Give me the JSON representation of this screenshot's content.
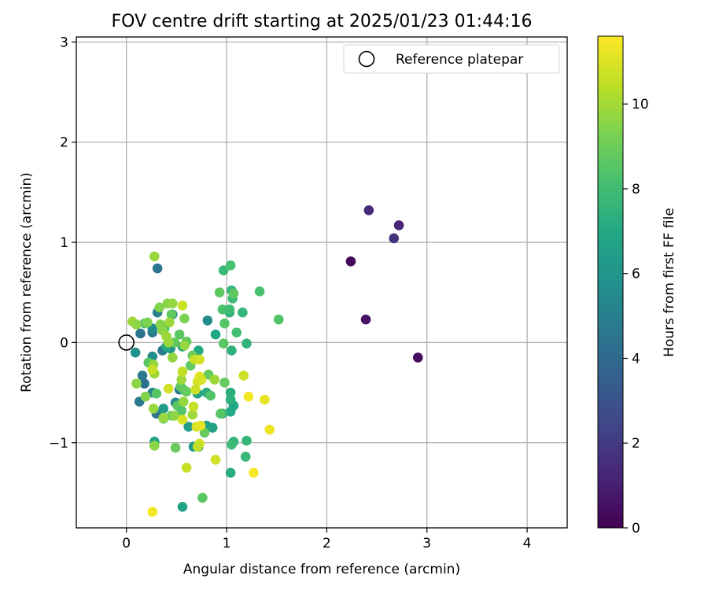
{
  "chart_data": {
    "type": "scatter",
    "title": "FOV centre drift starting at 2025/01/23 01:44:16",
    "xlabel": "Angular distance from reference (arcmin)",
    "ylabel": "Rotation from reference (arcmin)",
    "xlim": [
      -0.5,
      4.4
    ],
    "ylim": [
      -1.85,
      3.05
    ],
    "xticks": [
      0,
      1,
      2,
      3,
      4
    ],
    "xtick_labels": [
      "0",
      "1",
      "2",
      "3",
      "4"
    ],
    "yticks": [
      -1,
      0,
      1,
      2,
      3
    ],
    "ytick_labels": [
      "−1",
      "0",
      "1",
      "2",
      "3"
    ],
    "grid": true,
    "legend": {
      "placement": "top-right",
      "label": "Reference platepar"
    },
    "reference_point": {
      "x": 0,
      "y": 0
    },
    "colorbar": {
      "label": "Hours from first FF file",
      "colormap": "viridis",
      "range": [
        0,
        11.6
      ],
      "ticks": [
        0,
        2,
        4,
        6,
        8,
        10
      ],
      "tick_labels": [
        "0",
        "2",
        "4",
        "6",
        "8",
        "10"
      ]
    },
    "points": [
      {
        "x": 2.24,
        "y": 0.81,
        "c": 0.2
      },
      {
        "x": 2.42,
        "y": 1.32,
        "c": 1.4
      },
      {
        "x": 2.39,
        "y": 0.23,
        "c": 0.6
      },
      {
        "x": 2.67,
        "y": 1.04,
        "c": 1.6
      },
      {
        "x": 2.72,
        "y": 1.17,
        "c": 1.2
      },
      {
        "x": 2.91,
        "y": -0.15,
        "c": 0.4
      },
      {
        "x": 0.31,
        "y": 0.74,
        "c": 4.5
      },
      {
        "x": 0.31,
        "y": 0.3,
        "c": 5.0
      },
      {
        "x": 0.26,
        "y": 0.1,
        "c": 4.6
      },
      {
        "x": 0.26,
        "y": 0.14,
        "c": 5.5
      },
      {
        "x": 0.14,
        "y": 0.09,
        "c": 4.4
      },
      {
        "x": 0.09,
        "y": -0.1,
        "c": 5.8
      },
      {
        "x": 0.46,
        "y": 0.28,
        "c": 5.2
      },
      {
        "x": 0.36,
        "y": -0.08,
        "c": 4.8
      },
      {
        "x": 0.16,
        "y": -0.33,
        "c": 4.7
      },
      {
        "x": 0.18,
        "y": -0.41,
        "c": 4.3
      },
      {
        "x": 0.13,
        "y": -0.59,
        "c": 4.6
      },
      {
        "x": 0.26,
        "y": -0.5,
        "c": 5.2
      },
      {
        "x": 0.3,
        "y": -0.71,
        "c": 4.4
      },
      {
        "x": 0.49,
        "y": -0.6,
        "c": 5.4
      },
      {
        "x": 0.81,
        "y": 0.22,
        "c": 5.6
      },
      {
        "x": 0.53,
        "y": -0.47,
        "c": 4.5
      },
      {
        "x": 0.26,
        "y": -0.14,
        "c": 5.6
      },
      {
        "x": 0.44,
        "y": -0.06,
        "c": 6.0
      },
      {
        "x": 0.28,
        "y": -0.99,
        "c": 6.6
      },
      {
        "x": 0.37,
        "y": -0.66,
        "c": 6.3
      },
      {
        "x": 0.56,
        "y": -1.64,
        "c": 6.8
      },
      {
        "x": 0.62,
        "y": -0.84,
        "c": 6.4
      },
      {
        "x": 0.67,
        "y": -1.04,
        "c": 6.2
      },
      {
        "x": 0.72,
        "y": -1.04,
        "c": 6.8
      },
      {
        "x": 0.8,
        "y": -0.83,
        "c": 6.5
      },
      {
        "x": 0.86,
        "y": -0.85,
        "c": 6.6
      },
      {
        "x": 0.89,
        "y": 0.08,
        "c": 6.9
      },
      {
        "x": 0.71,
        "y": -0.51,
        "c": 6.6
      },
      {
        "x": 0.56,
        "y": -0.04,
        "c": 6.9
      },
      {
        "x": 0.4,
        "y": -0.04,
        "c": 7.0
      },
      {
        "x": 0.72,
        "y": -0.08,
        "c": 7.0
      },
      {
        "x": 0.8,
        "y": -0.5,
        "c": 7.2
      },
      {
        "x": 1.04,
        "y": -0.69,
        "c": 7.0
      },
      {
        "x": 1.07,
        "y": -0.63,
        "c": 6.9
      },
      {
        "x": 1.04,
        "y": -0.57,
        "c": 7.4
      },
      {
        "x": 1.04,
        "y": -0.5,
        "c": 7.3
      },
      {
        "x": 0.96,
        "y": -0.71,
        "c": 7.5
      },
      {
        "x": 1.05,
        "y": -0.08,
        "c": 7.4
      },
      {
        "x": 1.16,
        "y": 0.3,
        "c": 7.6
      },
      {
        "x": 1.2,
        "y": -0.01,
        "c": 7.5
      },
      {
        "x": 1.04,
        "y": -1.3,
        "c": 7.2
      },
      {
        "x": 1.07,
        "y": -0.99,
        "c": 7.5
      },
      {
        "x": 1.19,
        "y": -1.14,
        "c": 7.7
      },
      {
        "x": 1.2,
        "y": -0.98,
        "c": 7.6
      },
      {
        "x": 0.97,
        "y": 0.72,
        "c": 7.8
      },
      {
        "x": 1.03,
        "y": 0.3,
        "c": 7.4
      },
      {
        "x": 1.06,
        "y": 0.44,
        "c": 7.8
      },
      {
        "x": 1.05,
        "y": 0.52,
        "c": 7.6
      },
      {
        "x": 1.05,
        "y": -1.02,
        "c": 7.9
      },
      {
        "x": 0.57,
        "y": -0.47,
        "c": 7.7
      },
      {
        "x": 1.04,
        "y": 0.77,
        "c": 8.2
      },
      {
        "x": 1.33,
        "y": 0.51,
        "c": 8.2
      },
      {
        "x": 1.52,
        "y": 0.23,
        "c": 8.4
      },
      {
        "x": 1.1,
        "y": 0.1,
        "c": 8.1
      },
      {
        "x": 0.96,
        "y": 0.33,
        "c": 8.3
      },
      {
        "x": 0.98,
        "y": 0.19,
        "c": 8.5
      },
      {
        "x": 1.03,
        "y": 0.33,
        "c": 8.0
      },
      {
        "x": 1.07,
        "y": 0.49,
        "c": 8.7
      },
      {
        "x": 0.93,
        "y": 0.5,
        "c": 8.7
      },
      {
        "x": 0.97,
        "y": -0.01,
        "c": 8.6
      },
      {
        "x": 0.84,
        "y": -0.53,
        "c": 8.4
      },
      {
        "x": 0.82,
        "y": -0.32,
        "c": 8.8
      },
      {
        "x": 0.94,
        "y": -0.71,
        "c": 8.5
      },
      {
        "x": 0.98,
        "y": -0.4,
        "c": 8.8
      },
      {
        "x": 0.76,
        "y": -1.55,
        "c": 8.6
      },
      {
        "x": 0.78,
        "y": -0.9,
        "c": 8.8
      },
      {
        "x": 0.49,
        "y": -1.05,
        "c": 8.9
      },
      {
        "x": 0.45,
        "y": -0.73,
        "c": 8.9
      },
      {
        "x": 0.54,
        "y": -0.44,
        "c": 8.7
      },
      {
        "x": 0.51,
        "y": -0.63,
        "c": 8.6
      },
      {
        "x": 0.55,
        "y": -0.68,
        "c": 8.4
      },
      {
        "x": 0.37,
        "y": -0.76,
        "c": 8.9
      },
      {
        "x": 0.3,
        "y": -0.51,
        "c": 8.5
      },
      {
        "x": 0.6,
        "y": -0.49,
        "c": 8.8
      },
      {
        "x": 0.64,
        "y": -0.23,
        "c": 8.7
      },
      {
        "x": 0.66,
        "y": -0.13,
        "c": 8.9
      },
      {
        "x": 0.45,
        "y": 0.28,
        "c": 8.7
      },
      {
        "x": 0.38,
        "y": 0.14,
        "c": 8.2
      },
      {
        "x": 0.53,
        "y": 0.08,
        "c": 8.6
      },
      {
        "x": 0.48,
        "y": 0.0,
        "c": 8.8
      },
      {
        "x": 0.6,
        "y": 0.01,
        "c": 8.8
      },
      {
        "x": 0.18,
        "y": 0.19,
        "c": 8.5
      },
      {
        "x": 0.22,
        "y": -0.2,
        "c": 8.6
      },
      {
        "x": 0.28,
        "y": 0.86,
        "c": 9.8
      },
      {
        "x": 0.06,
        "y": 0.21,
        "c": 9.9
      },
      {
        "x": 0.1,
        "y": 0.18,
        "c": 9.6
      },
      {
        "x": 0.21,
        "y": 0.2,
        "c": 9.3
      },
      {
        "x": 0.33,
        "y": 0.35,
        "c": 9.4
      },
      {
        "x": 0.41,
        "y": 0.39,
        "c": 9.5
      },
      {
        "x": 0.46,
        "y": 0.39,
        "c": 9.7
      },
      {
        "x": 0.43,
        "y": 0.2,
        "c": 9.9
      },
      {
        "x": 0.36,
        "y": 0.12,
        "c": 9.6
      },
      {
        "x": 0.4,
        "y": 0.06,
        "c": 9.9
      },
      {
        "x": 0.46,
        "y": -0.15,
        "c": 9.7
      },
      {
        "x": 0.34,
        "y": 0.18,
        "c": 9.5
      },
      {
        "x": 0.42,
        "y": 0.0,
        "c": 9.8
      },
      {
        "x": 0.58,
        "y": 0.24,
        "c": 9.3
      },
      {
        "x": 0.1,
        "y": -0.41,
        "c": 9.6
      },
      {
        "x": 0.19,
        "y": -0.54,
        "c": 9.4
      },
      {
        "x": 0.27,
        "y": -0.22,
        "c": 9.7
      },
      {
        "x": 0.28,
        "y": -0.31,
        "c": 9.9
      },
      {
        "x": 0.28,
        "y": -1.03,
        "c": 9.6
      },
      {
        "x": 0.27,
        "y": -0.66,
        "c": 9.8
      },
      {
        "x": 0.37,
        "y": -0.75,
        "c": 9.8
      },
      {
        "x": 0.48,
        "y": -0.73,
        "c": 9.6
      },
      {
        "x": 0.55,
        "y": -0.37,
        "c": 9.9
      },
      {
        "x": 0.57,
        "y": -0.59,
        "c": 9.7
      },
      {
        "x": 0.66,
        "y": -0.72,
        "c": 9.9
      },
      {
        "x": 0.58,
        "y": -0.03,
        "c": 9.8
      },
      {
        "x": 0.88,
        "y": -0.37,
        "c": 9.9
      },
      {
        "x": 0.56,
        "y": 0.37,
        "c": 10.7
      },
      {
        "x": 0.26,
        "y": -0.27,
        "c": 10.6
      },
      {
        "x": 0.42,
        "y": -0.46,
        "c": 10.8
      },
      {
        "x": 0.56,
        "y": -0.29,
        "c": 10.5
      },
      {
        "x": 0.71,
        "y": -0.39,
        "c": 10.9
      },
      {
        "x": 0.68,
        "y": -0.17,
        "c": 10.6
      },
      {
        "x": 0.73,
        "y": -0.17,
        "c": 10.8
      },
      {
        "x": 0.73,
        "y": -0.34,
        "c": 11.1
      },
      {
        "x": 0.75,
        "y": -0.37,
        "c": 10.9
      },
      {
        "x": 0.69,
        "y": -0.47,
        "c": 10.7
      },
      {
        "x": 0.7,
        "y": -0.84,
        "c": 10.9
      },
      {
        "x": 0.67,
        "y": -0.64,
        "c": 10.6
      },
      {
        "x": 0.73,
        "y": -1.01,
        "c": 10.8
      },
      {
        "x": 0.71,
        "y": -1.04,
        "c": 10.5
      },
      {
        "x": 0.56,
        "y": -0.77,
        "c": 10.9
      },
      {
        "x": 0.6,
        "y": -1.25,
        "c": 10.6
      },
      {
        "x": 0.89,
        "y": -1.17,
        "c": 10.8
      },
      {
        "x": 1.17,
        "y": -0.33,
        "c": 10.7
      },
      {
        "x": 1.22,
        "y": -0.54,
        "c": 11.4
      },
      {
        "x": 1.38,
        "y": -0.57,
        "c": 11.2
      },
      {
        "x": 1.27,
        "y": -1.3,
        "c": 11.5
      },
      {
        "x": 1.43,
        "y": -0.87,
        "c": 11.3
      },
      {
        "x": 0.26,
        "y": -1.69,
        "c": 11.5
      },
      {
        "x": 0.74,
        "y": -0.83,
        "c": 11.2
      }
    ]
  }
}
